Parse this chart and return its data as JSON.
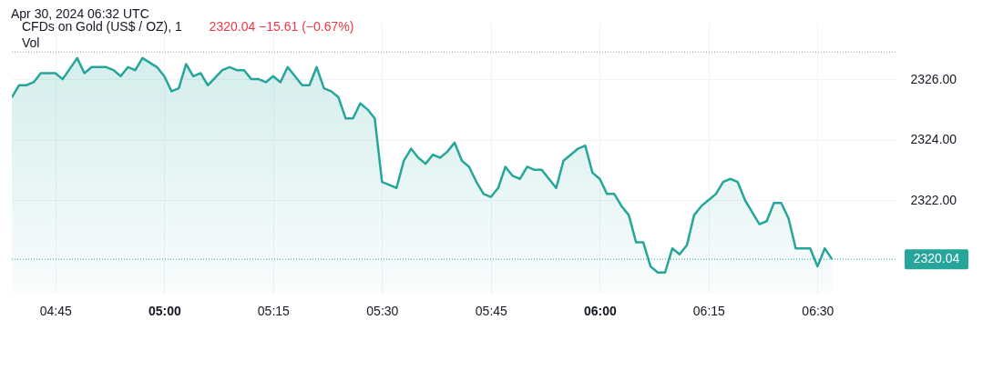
{
  "chart_data": {
    "type": "area",
    "title": "CFDs on Gold (US$ / OZ), 1",
    "subtitle": "2320.04  −15.61 (−0.67%)",
    "annotations": [
      "Apr 30, 2024 06:32 UTC",
      "Vol"
    ],
    "x": [
      "2024-04-30T04:39",
      "2024-04-30T04:40",
      "2024-04-30T04:41",
      "2024-04-30T04:42",
      "2024-04-30T04:43",
      "2024-04-30T04:44",
      "2024-04-30T04:45",
      "2024-04-30T04:46",
      "2024-04-30T04:48",
      "2024-04-30T04:49",
      "2024-04-30T04:50",
      "2024-04-30T04:51",
      "2024-04-30T04:52",
      "2024-04-30T04:53",
      "2024-04-30T04:54",
      "2024-04-30T04:55",
      "2024-04-30T04:56",
      "2024-04-30T04:57",
      "2024-04-30T04:59",
      "2024-04-30T05:00",
      "2024-04-30T05:01",
      "2024-04-30T05:02",
      "2024-04-30T05:03",
      "2024-04-30T05:04",
      "2024-04-30T05:05",
      "2024-04-30T05:06",
      "2024-04-30T05:08",
      "2024-04-30T05:09",
      "2024-04-30T05:10",
      "2024-04-30T05:11",
      "2024-04-30T05:12",
      "2024-04-30T05:13",
      "2024-04-30T05:14",
      "2024-04-30T05:15",
      "2024-04-30T05:16",
      "2024-04-30T05:17",
      "2024-04-30T05:18",
      "2024-04-30T05:19",
      "2024-04-30T05:20",
      "2024-04-30T05:21",
      "2024-04-30T05:22",
      "2024-04-30T05:23",
      "2024-04-30T05:24",
      "2024-04-30T05:25",
      "2024-04-30T05:26",
      "2024-04-30T05:27",
      "2024-04-30T05:28",
      "2024-04-30T05:29",
      "2024-04-30T05:30",
      "2024-04-30T05:31",
      "2024-04-30T05:32",
      "2024-04-30T05:33",
      "2024-04-30T05:34",
      "2024-04-30T05:35",
      "2024-04-30T05:36",
      "2024-04-30T05:37",
      "2024-04-30T05:38",
      "2024-04-30T05:39",
      "2024-04-30T05:40",
      "2024-04-30T05:41",
      "2024-04-30T05:42",
      "2024-04-30T05:43",
      "2024-04-30T05:44",
      "2024-04-30T05:45",
      "2024-04-30T05:46",
      "2024-04-30T05:47",
      "2024-04-30T05:48",
      "2024-04-30T05:49",
      "2024-04-30T05:50",
      "2024-04-30T05:51",
      "2024-04-30T05:52",
      "2024-04-30T05:53",
      "2024-04-30T05:54",
      "2024-04-30T05:55",
      "2024-04-30T05:56",
      "2024-04-30T05:57",
      "2024-04-30T05:58",
      "2024-04-30T05:59",
      "2024-04-30T06:00",
      "2024-04-30T06:01",
      "2024-04-30T06:02",
      "2024-04-30T06:03",
      "2024-04-30T06:04",
      "2024-04-30T06:05",
      "2024-04-30T06:06",
      "2024-04-30T06:07",
      "2024-04-30T06:08",
      "2024-04-30T06:09",
      "2024-04-30T06:10",
      "2024-04-30T06:11",
      "2024-04-30T06:12",
      "2024-04-30T06:13",
      "2024-04-30T06:14",
      "2024-04-30T06:15",
      "2024-04-30T06:16",
      "2024-04-30T06:17",
      "2024-04-30T06:18",
      "2024-04-30T06:19",
      "2024-04-30T06:20",
      "2024-04-30T06:21",
      "2024-04-30T06:22",
      "2024-04-30T06:23",
      "2024-04-30T06:24",
      "2024-04-30T06:25",
      "2024-04-30T06:26",
      "2024-04-30T06:27",
      "2024-04-30T06:28",
      "2024-04-30T06:29",
      "2024-04-30T06:30",
      "2024-04-30T06:31",
      "2024-04-30T06:32"
    ],
    "series": [
      {
        "color": "#26a69a",
        "values": [
          2325.4,
          2325.8,
          2325.8,
          2325.9,
          2326.2,
          2326.2,
          2326.2,
          2326.0,
          2326.7,
          2326.2,
          2326.4,
          2326.4,
          2326.4,
          2326.3,
          2326.1,
          2326.4,
          2326.3,
          2326.7,
          2326.4,
          2326.1,
          2325.6,
          2325.7,
          2326.5,
          2326.1,
          2326.2,
          2325.8,
          2326.3,
          2326.4,
          2326.3,
          2326.3,
          2326.0,
          2326.0,
          2325.9,
          2326.1,
          2325.9,
          2326.4,
          2326.1,
          2325.8,
          2325.8,
          2326.4,
          2325.7,
          2325.6,
          2325.4,
          2324.7,
          2324.7,
          2325.2,
          2325.0,
          2324.7,
          2322.6,
          2322.5,
          2322.4,
          2323.3,
          2323.7,
          2323.4,
          2323.2,
          2323.5,
          2323.4,
          2323.6,
          2323.9,
          2323.3,
          2323.1,
          2322.6,
          2322.2,
          2322.1,
          2322.4,
          2323.1,
          2322.8,
          2322.7,
          2323.1,
          2323.0,
          2323.0,
          2322.7,
          2322.4,
          2323.3,
          2323.5,
          2323.7,
          2323.8,
          2322.9,
          2322.7,
          2322.2,
          2322.2,
          2321.8,
          2321.5,
          2320.6,
          2320.6,
          2319.8,
          2319.6,
          2319.6,
          2320.4,
          2320.2,
          2320.5,
          2321.5,
          2321.8,
          2322.0,
          2322.2,
          2322.6,
          2322.7,
          2322.6,
          2322.0,
          2321.6,
          2321.2,
          2321.3,
          2321.9,
          2321.9,
          2321.4,
          2320.4,
          2320.4,
          2320.4,
          2319.8,
          2320.4,
          2320.04
        ]
      }
    ],
    "xlim": [
      "2024-04-30T04:39",
      "2024-04-30T06:41"
    ],
    "xticks": [
      {
        "value": "2024-04-30T04:45",
        "label": "04:45"
      },
      {
        "value": "2024-04-30T05:00",
        "label": "05:00"
      },
      {
        "value": "2024-04-30T05:15",
        "label": "05:15"
      },
      {
        "value": "2024-04-30T05:30",
        "label": "05:30"
      },
      {
        "value": "2024-04-30T05:45",
        "label": "05:45"
      },
      {
        "value": "2024-04-30T06:00",
        "label": "06:00"
      },
      {
        "value": "2024-04-30T06:15",
        "label": "06:15"
      },
      {
        "value": "2024-04-30T06:30",
        "label": "06:30"
      }
    ],
    "ylim": [
      2318.9,
      2327.9
    ],
    "yticks": [
      {
        "value": 2322,
        "label": "2322.00"
      },
      {
        "value": 2324,
        "label": "2324.00"
      },
      {
        "value": 2326,
        "label": "2326.00"
      }
    ],
    "ref_lines": [
      {
        "axis": "y",
        "value": 2320.04,
        "label": "2320.04",
        "color": "#26a69a",
        "line_style": "dotted"
      },
      {
        "axis": "y",
        "value": 2326.9,
        "color": "#9e9e9e",
        "line_style": "dotted"
      }
    ],
    "grid": true
  }
}
